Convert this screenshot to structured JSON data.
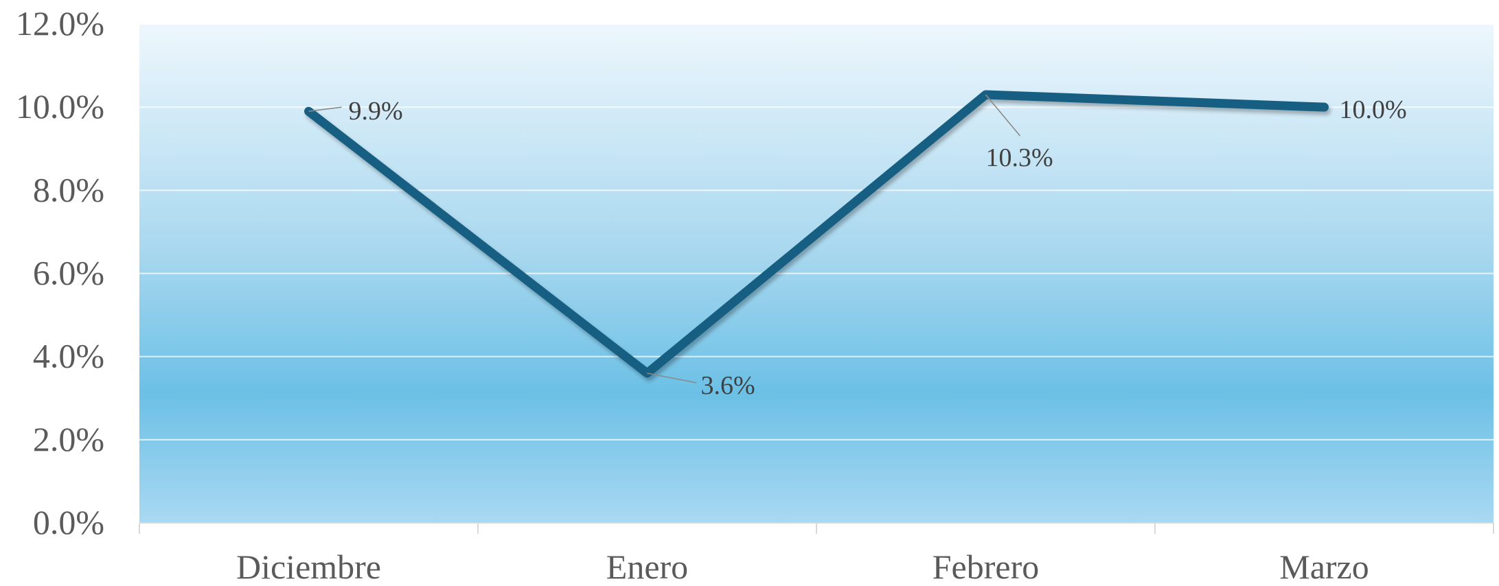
{
  "chart_data": {
    "type": "line",
    "title": "",
    "xlabel": "",
    "ylabel": "",
    "categories": [
      "Diciembre",
      "Enero",
      "Febrero",
      "Marzo"
    ],
    "series": [
      {
        "values": [
          9.9,
          3.6,
          10.3,
          10.0
        ],
        "data_labels": [
          "9.9%",
          "3.6%",
          "10.3%",
          "10.0%"
        ],
        "color": "#185f82"
      }
    ],
    "ylim": [
      0,
      12
    ],
    "y_ticks": [
      "0.0%",
      "2.0%",
      "4.0%",
      "6.0%",
      "8.0%",
      "10.0%",
      "12.0%"
    ],
    "grid": true,
    "legend": false,
    "colors": {
      "plot_top": "#eef7fd",
      "plot_mid": "#6cc0e6",
      "plot_bottom": "#a9d9f1",
      "line": "#185f82",
      "text": "#5a5a5a"
    }
  }
}
